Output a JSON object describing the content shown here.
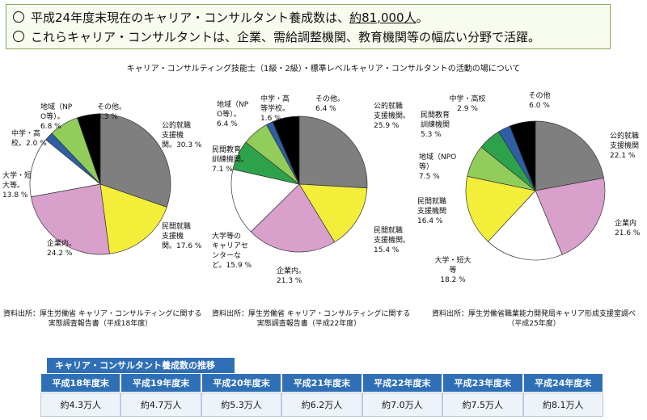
{
  "summary": {
    "line1_pre": "平成24年度末現在のキャリア・コンサルタント養成数は、",
    "line1_em": "約81,000人",
    "line1_post": "。",
    "line2": "これらキャリア・コンサルタントは、企業、需給調整機関、教育機関等の幅広い分野で活躍。"
  },
  "subtitle": "キャリア・コンサルティング技能士（1級・2級）・標準レベルキャリア・コンサルタントの活動の場について",
  "colors": {
    "public": "#7f7f7f",
    "private": "#f2ee3a",
    "company": "#d9a0cc",
    "univ": "#ffffff",
    "career_center": "#ffffff",
    "private_edu": "#2ea24a",
    "local": "#92cc5a",
    "highschool": "#2e5fa5",
    "other": "#000000"
  },
  "chart_data": [
    {
      "type": "pie",
      "source": "資料出所：厚生労働省 キャリア・コンサルティングに関する実態調査報告書（平成18年度）",
      "source_lines": [
        "資料出所：厚生労働省 キャリア・コンサルティングに関する",
        "実態調査報告書（平成18年度）"
      ],
      "slices": [
        {
          "label_lines": [
            "公的就職",
            "支援機",
            "関。30.3 %"
          ],
          "value": 30.3,
          "color_key": "public"
        },
        {
          "label_lines": [
            "民間就職",
            "支援機",
            "関。17.6 %"
          ],
          "value": 17.6,
          "color_key": "private"
        },
        {
          "label_lines": [
            "企業内。",
            "24.2 %"
          ],
          "value": 24.2,
          "color_key": "company"
        },
        {
          "label_lines": [
            "大学・短",
            "大等。",
            "13.8 %"
          ],
          "value": 13.8,
          "color_key": "univ"
        },
        {
          "label_lines": [
            "中学・高",
            "校。2.0 %"
          ],
          "value": 2.0,
          "color_key": "highschool"
        },
        {
          "label_lines": [
            "地域（NP",
            "O等）。",
            "6.8 %"
          ],
          "value": 6.8,
          "color_key": "local"
        },
        {
          "label_lines": [
            "その他。",
            "5.3 %"
          ],
          "value": 5.3,
          "color_key": "other"
        }
      ]
    },
    {
      "type": "pie",
      "source": "資料出所：厚生労働省 キャリア・コンサルティングに関する実態調査報告書（平成22年度）",
      "source_lines": [
        "資料出所：厚生労働省 キャリア・コンサルティングに関する",
        "実態調査報告書（平成22年度）"
      ],
      "slices": [
        {
          "label_lines": [
            "公的就職",
            "支援機関。",
            "25.9 %"
          ],
          "value": 25.9,
          "color_key": "public"
        },
        {
          "label_lines": [
            "民間就職",
            "支援機関。",
            "15.4 %"
          ],
          "value": 15.4,
          "color_key": "private"
        },
        {
          "label_lines": [
            "企業内。",
            "21.3 %"
          ],
          "value": 21.3,
          "color_key": "company"
        },
        {
          "label_lines": [
            "大学等の",
            "キャリアセ",
            "ンターな",
            "ど。15.9 %"
          ],
          "value": 15.9,
          "color_key": "career_center"
        },
        {
          "label_lines": [
            "民間教育",
            "訓練機関。",
            "7.1 %"
          ],
          "value": 7.1,
          "color_key": "private_edu"
        },
        {
          "label_lines": [
            "地域（NP",
            "O等）。",
            "6.4 %"
          ],
          "value": 6.4,
          "color_key": "local"
        },
        {
          "label_lines": [
            "中学・高",
            "等学校。",
            "1.6 %"
          ],
          "value": 1.6,
          "color_key": "highschool"
        },
        {
          "label_lines": [
            "その他。",
            "6.4 %"
          ],
          "value": 6.4,
          "color_key": "other"
        }
      ]
    },
    {
      "type": "pie",
      "source": "資料出所：厚生労働省職業能力開発局キャリア形成支援室調べ（平成25年度）",
      "source_lines": [
        "資料出所：厚生労働省職業能力開発局キャリア形成支援室調べ",
        "（平成25年度）"
      ],
      "slices": [
        {
          "label_lines": [
            "公的就職",
            "支援機関",
            "22.1 %"
          ],
          "value": 22.1,
          "color_key": "public"
        },
        {
          "label_lines": [
            "企業内",
            "21.6 %"
          ],
          "value": 21.6,
          "color_key": "company"
        },
        {
          "label_lines": [
            "大学・短大",
            "等",
            "18.2 %"
          ],
          "value": 18.2,
          "color_key": "univ"
        },
        {
          "label_lines": [
            "民間就職",
            "支援機関",
            "16.4 %"
          ],
          "value": 16.4,
          "color_key": "private"
        },
        {
          "label_lines": [
            "地域（NPO",
            "等）",
            "7.5 %"
          ],
          "value": 7.5,
          "color_key": "local"
        },
        {
          "label_lines": [
            "民間教育",
            "訓練機関",
            "5.3 %"
          ],
          "value": 5.3,
          "color_key": "private_edu"
        },
        {
          "label_lines": [
            "中学・高校",
            "2.9 %"
          ],
          "value": 2.9,
          "color_key": "highschool"
        },
        {
          "label_lines": [
            "その他",
            "6.0 %"
          ],
          "value": 6.0,
          "color_key": "other"
        }
      ]
    }
  ],
  "trend": {
    "title": "キャリア・コンサルタント養成数の推移",
    "headers": [
      "平成18年度末",
      "平成19年度末",
      "平成20年度末",
      "平成21年度末",
      "平成22年度末",
      "平成23年度末",
      "平成24年度末"
    ],
    "values": [
      "約4.3万人",
      "約4.7万人",
      "約5.3万人",
      "約6.2万人",
      "約7.0万人",
      "約7.5万人",
      "約8.1万人"
    ]
  }
}
